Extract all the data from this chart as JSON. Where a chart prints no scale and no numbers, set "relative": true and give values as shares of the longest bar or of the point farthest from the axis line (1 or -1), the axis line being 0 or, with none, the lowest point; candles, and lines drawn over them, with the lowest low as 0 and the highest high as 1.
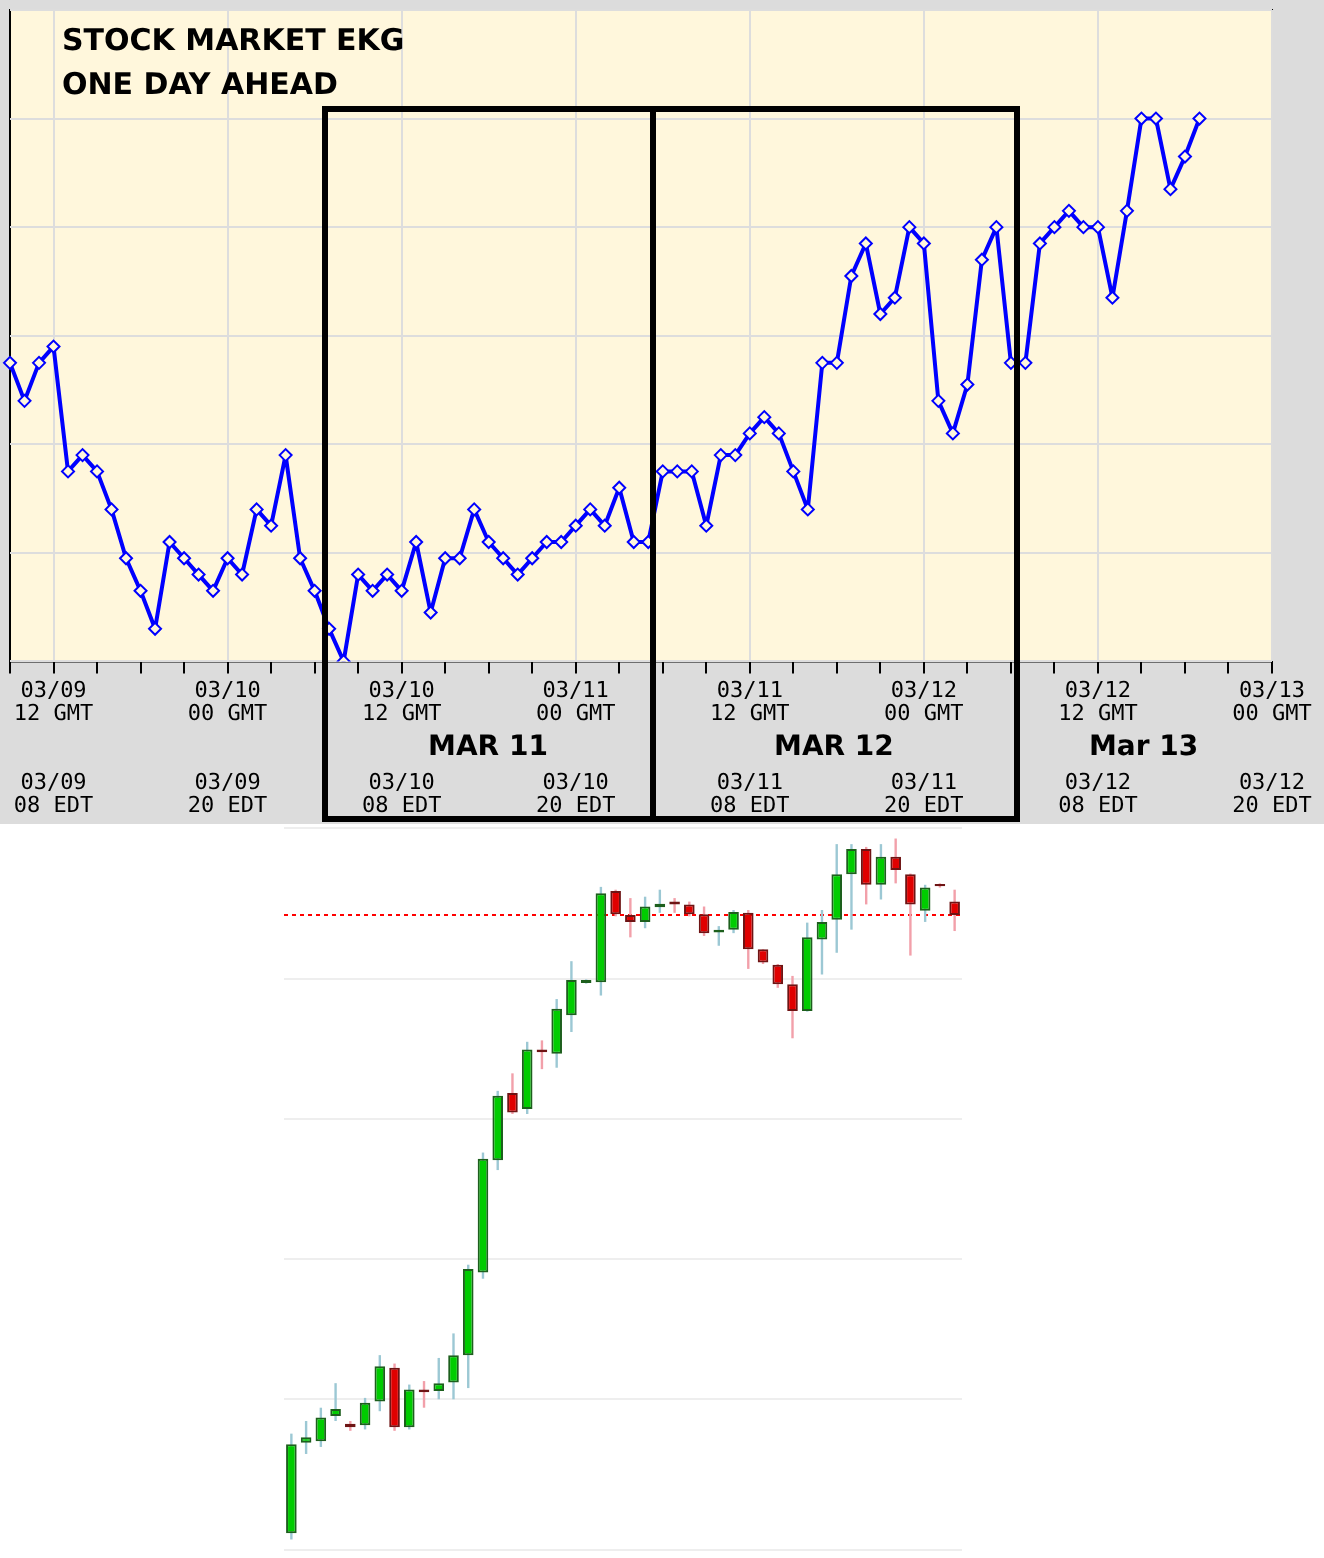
{
  "chart_data": [
    {
      "type": "line",
      "title": "STOCK MARKET EKG",
      "subtitle": "ONE DAY AHEAD",
      "relative": true,
      "color": "#0000ff",
      "marker": "diamond",
      "grid": true,
      "tick_labels": "x",
      "categories": [
        null,
        null,
        null,
        "03/09\n12 GMT\n03/09\n08 EDT",
        null,
        null,
        null,
        null,
        null,
        null,
        null,
        null,
        null,
        null,
        null,
        "03/10\n00 GMT\n03/09\n20 EDT",
        null,
        null,
        null,
        null,
        null,
        null,
        null,
        null,
        null,
        null,
        null,
        "03/10\n12 GMT\n03/10\n08 EDT",
        null,
        null,
        null,
        null,
        null,
        null,
        null,
        null,
        null,
        null,
        null,
        "03/11\n00 GMT\n03/10\n20 EDT",
        null,
        null,
        null,
        null,
        null,
        null,
        null,
        null,
        null,
        null,
        null,
        "03/11\n12 GMT\n03/11\n08 EDT",
        null,
        null,
        null,
        null,
        null,
        null,
        null,
        null,
        null,
        null,
        null,
        "03/12\n00 GMT\n03/11\n20 EDT",
        null,
        null,
        null,
        null,
        null,
        null,
        null,
        null,
        null,
        null,
        null,
        "03/12\n12 GMT\n03/12\n08 EDT",
        null,
        null,
        null,
        null,
        null,
        null,
        null,
        null,
        null,
        null,
        null,
        "03/13\n00 GMT\n03/12\n20 EDT"
      ],
      "values": [
        0.55,
        0.48,
        0.55,
        0.58,
        0.35,
        0.38,
        0.35,
        0.28,
        0.19,
        0.13,
        0.06,
        0.22,
        0.19,
        0.16,
        0.13,
        0.19,
        0.16,
        0.28,
        0.25,
        0.38,
        0.19,
        0.13,
        0.06,
        0,
        0.16,
        0.13,
        0.16,
        0.13,
        0.22,
        0.09,
        0.19,
        0.19,
        0.28,
        0.22,
        0.19,
        0.16,
        0.19,
        0.22,
        0.22,
        0.25,
        0.28,
        0.25,
        0.32,
        0.22,
        0.22,
        0.35,
        0.35,
        0.35,
        0.25,
        0.38,
        0.38,
        0.42,
        0.45,
        0.42,
        0.35,
        0.28,
        0.55,
        0.55,
        0.71,
        0.77,
        0.64,
        0.67,
        0.8,
        0.77,
        0.48,
        0.42,
        0.51,
        0.74,
        0.8,
        0.55,
        0.55,
        0.77,
        0.8,
        0.83,
        0.8,
        0.8,
        0.67,
        0.83,
        1,
        1,
        0.87,
        0.93,
        1,
        null,
        null,
        null,
        null,
        null
      ],
      "annotations": [
        "MAR 11",
        "MAR 12",
        "Mar 13"
      ]
    },
    {
      "type": "candlestick",
      "relative": true,
      "grid": "y",
      "tick_labels": false,
      "categories": [
        null,
        null,
        null,
        null,
        null,
        null,
        null,
        null,
        null,
        null,
        null,
        null,
        null,
        null,
        null,
        null,
        null,
        null,
        null,
        null,
        null,
        null,
        null,
        null,
        null,
        null,
        null,
        null,
        null,
        null,
        null,
        null,
        null,
        null,
        null,
        null,
        null,
        null,
        null,
        null,
        null,
        null,
        null,
        null,
        null,
        null
      ],
      "ohlc": [
        [
          0.009,
          0.151,
          0,
          0.136
        ],
        [
          0.138,
          0.169,
          0.122,
          0.146
        ],
        [
          0.14,
          0.188,
          0.132,
          0.174
        ],
        [
          0.176,
          0.223,
          0.169,
          0.186
        ],
        [
          0.165,
          0.169,
          0.155,
          0.16
        ],
        [
          0.163,
          0.202,
          0.157,
          0.195
        ],
        [
          0.197,
          0.263,
          0.183,
          0.247
        ],
        [
          0.245,
          0.251,
          0.155,
          0.16
        ],
        [
          0.16,
          0.221,
          0.157,
          0.214
        ],
        [
          0.214,
          0.226,
          0.188,
          0.21
        ],
        [
          0.212,
          0.259,
          0.2,
          0.223
        ],
        [
          0.224,
          0.294,
          0.2,
          0.263
        ],
        [
          0.263,
          0.392,
          0.216,
          0.386
        ],
        [
          0.381,
          0.552,
          0.372,
          0.543
        ],
        [
          0.541,
          0.64,
          0.527,
          0.633
        ],
        [
          0.637,
          0.665,
          0.607,
          0.609
        ],
        [
          0.614,
          0.71,
          0.607,
          0.699
        ],
        [
          0.699,
          0.712,
          0.671,
          0.695
        ],
        [
          0.693,
          0.771,
          0.673,
          0.757
        ],
        [
          0.748,
          0.825,
          0.724,
          0.798
        ],
        [
          0.794,
          0.799,
          0.793,
          0.798
        ],
        [
          0.795,
          0.931,
          0.776,
          0.922
        ],
        [
          0.925,
          0.927,
          0.889,
          0.892
        ],
        [
          0.891,
          0.915,
          0.859,
          0.881
        ],
        [
          0.881,
          0.917,
          0.872,
          0.903
        ],
        [
          0.902,
          0.927,
          0.894,
          0.907
        ],
        [
          0.91,
          0.915,
          0.894,
          0.906
        ],
        [
          0.906,
          0.91,
          0.889,
          0.892
        ],
        [
          0.892,
          0.903,
          0.861,
          0.865
        ],
        [
          0.866,
          0.875,
          0.847,
          0.87
        ],
        [
          0.87,
          0.898,
          0.865,
          0.895
        ],
        [
          0.894,
          0.898,
          0.814,
          0.842
        ],
        [
          0.842,
          0.842,
          0.821,
          0.823
        ],
        [
          0.82,
          0.821,
          0.787,
          0.792
        ],
        [
          0.792,
          0.804,
          0.715,
          0.754
        ],
        [
          0.754,
          0.88,
          0.753,
          0.859
        ],
        [
          0.856,
          0.898,
          0.806,
          0.881
        ],
        [
          0.884,
          0.992,
          0.837,
          0.949
        ],
        [
          0.949,
          0.992,
          0.87,
          0.985
        ],
        [
          0.985,
          0.988,
          0.906,
          0.934
        ],
        [
          0.934,
          0.992,
          0.913,
          0.974
        ],
        [
          0.974,
          1,
          0.936,
          0.955
        ],
        [
          0.949,
          0.95,
          0.833,
          0.906
        ],
        [
          0.897,
          0.934,
          0.881,
          0.93
        ],
        [
          0.935,
          0.936,
          0.93,
          0.932
        ],
        [
          0.91,
          0.927,
          0.868,
          0.891
        ]
      ],
      "ref_lines": [
        {
          "axis": "y",
          "value": 0.891,
          "color": "#ff0000",
          "line_style": "dotted"
        }
      ]
    }
  ]
}
